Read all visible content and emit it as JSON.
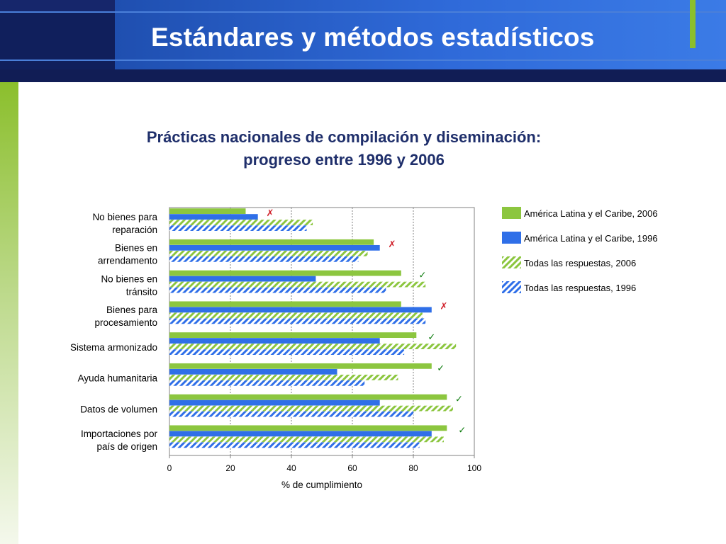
{
  "slide": {
    "title": "Estándares y métodos estadísticos"
  },
  "colors": {
    "green": "#8cc63f",
    "blue": "#2f6fe8",
    "header_navy": "#101f5c",
    "header_blue": "#2f6ad9",
    "accent_green": "#8bbf2c",
    "check_green": "#0a7a0a",
    "cross_red": "#d0202a"
  },
  "chart_data": {
    "type": "bar",
    "orientation": "horizontal",
    "title": "Prácticas nacionales de compilación y diseminación: progreso entre 1996 y 2006",
    "title_lines": [
      "Prácticas nacionales de compilación y diseminación:",
      "progreso entre 1996 y 2006"
    ],
    "xlabel": "% de cumplimiento",
    "xlim": [
      0,
      100
    ],
    "xticks": [
      0,
      20,
      40,
      60,
      80,
      100
    ],
    "grid": "vertical",
    "legend_position": "right",
    "categories": [
      [
        "No bienes para",
        "reparación"
      ],
      [
        "Bienes en",
        "arrendamento"
      ],
      [
        "No bienes en",
        "tránsito"
      ],
      [
        "Bienes para",
        "procesamiento"
      ],
      [
        "Sistema armonizado"
      ],
      [
        "Ayuda humanitaria"
      ],
      [
        "Datos de volumen"
      ],
      [
        "Importaciones por",
        "país de origen"
      ]
    ],
    "series": [
      {
        "name": "América Latina y el Caribe, 2006",
        "color": "#8cc63f",
        "pattern": "solid",
        "values": [
          25,
          67,
          76,
          76,
          81,
          86,
          91,
          91
        ]
      },
      {
        "name": "América Latina y el Caribe, 1996",
        "color": "#2f6fe8",
        "pattern": "solid",
        "values": [
          29,
          69,
          48,
          86,
          69,
          55,
          69,
          86
        ]
      },
      {
        "name": "Todas las respuestas, 2006",
        "color": "#8cc63f",
        "pattern": "hatched",
        "values": [
          47,
          65,
          84,
          83,
          94,
          75,
          93,
          90
        ]
      },
      {
        "name": "Todas las respuestas, 1996",
        "color": "#2f6fe8",
        "pattern": "hatched",
        "values": [
          45,
          62,
          71,
          84,
          77,
          64,
          80,
          82
        ]
      }
    ],
    "marks": [
      {
        "symbol": "✗",
        "type": "cross",
        "x": 33
      },
      {
        "symbol": "✗",
        "type": "cross",
        "x": 73
      },
      {
        "symbol": "✓",
        "type": "check",
        "x": 83
      },
      {
        "symbol": "✗",
        "type": "cross",
        "x": 90
      },
      {
        "symbol": "✓",
        "type": "check",
        "x": 86
      },
      {
        "symbol": "✓",
        "type": "check",
        "x": 89
      },
      {
        "symbol": "✓",
        "type": "check",
        "x": 95
      },
      {
        "symbol": "✓",
        "type": "check",
        "x": 96
      }
    ]
  }
}
